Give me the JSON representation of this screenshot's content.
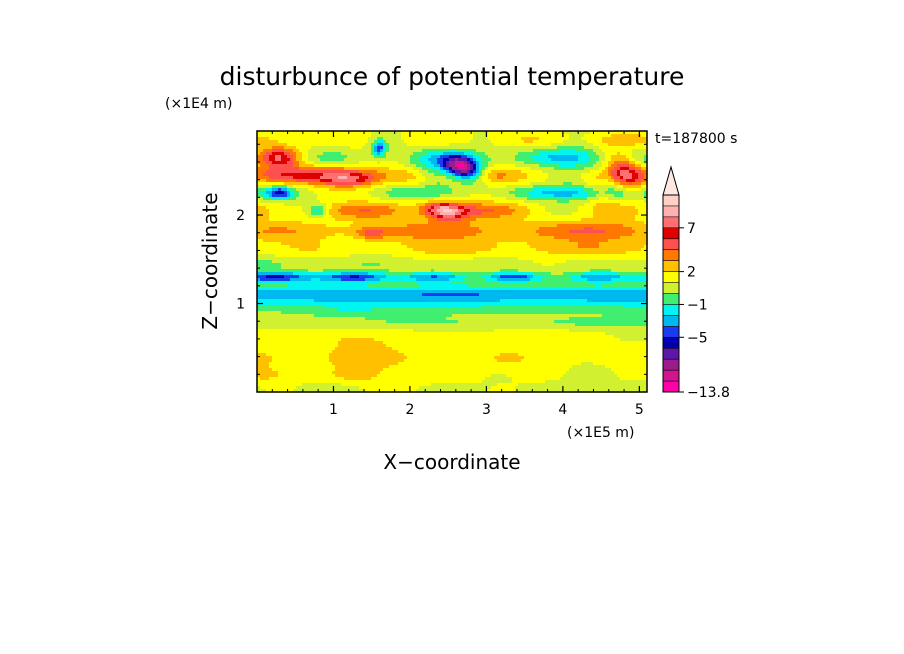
{
  "chart_data": {
    "type": "heatmap",
    "title": "disturbunce of potential temperature",
    "time_label": "t=187800 s",
    "xlabel": "X−coordinate",
    "ylabel": "Z−coordinate",
    "x_unit": "(×1E5 m)",
    "y_unit": "(×1E4 m)",
    "xlim": [
      0,
      5.1
    ],
    "ylim": [
      0,
      2.95
    ],
    "x_ticks": [
      {
        "v": 1,
        "label": "1"
      },
      {
        "v": 2,
        "label": "2"
      },
      {
        "v": 3,
        "label": "3"
      },
      {
        "v": 4,
        "label": "4"
      },
      {
        "v": 5,
        "label": "5"
      }
    ],
    "y_ticks": [
      {
        "v": 1,
        "label": "1"
      },
      {
        "v": 2,
        "label": "2"
      }
    ],
    "colorbar": {
      "extend": "max",
      "colors": [
        "#ff00aa",
        "#d0158e",
        "#9b1c8c",
        "#5c16a8",
        "#0000b0",
        "#1a3cf0",
        "#00b8f0",
        "#00f5f0",
        "#40ee70",
        "#d0f030",
        "#ffff00",
        "#ffc000",
        "#ff7800",
        "#ff5050",
        "#e00000",
        "#ff7070",
        "#ffb0b0",
        "#ffd0c8"
      ],
      "tick_labels": [
        {
          "bound": 0,
          "label": "−13.8"
        },
        {
          "bound": 5,
          "label": "−5"
        },
        {
          "bound": 8,
          "label": "−1"
        },
        {
          "bound": 11,
          "label": "2"
        },
        {
          "bound": 15,
          "label": "7"
        }
      ]
    },
    "bands": [
      {
        "z": 0.05,
        "v": -0.5,
        "dz": 0.08,
        "amp": 0.8,
        "kx": 2.5
      },
      {
        "z": 0.18,
        "v": 0.3,
        "dz": 0.1,
        "amp": 0.9,
        "kx": 3.0
      },
      {
        "z": 0.38,
        "v": 0.7,
        "dz": 0.15,
        "amp": 0.8,
        "kx": 2.0
      },
      {
        "z": 0.6,
        "v": 0.4,
        "dz": 0.12,
        "amp": 0.6,
        "kx": 1.5
      },
      {
        "z": 0.78,
        "v": -0.6,
        "dz": 0.07,
        "amp": 0.5,
        "kx": 1.5
      },
      {
        "z": 1.02,
        "v": -1.8,
        "dz": 0.16,
        "amp": 0.4,
        "kx": 1.0
      },
      {
        "z": 1.12,
        "v": -2.2,
        "dz": 0.1,
        "amp": 0.5,
        "kx": 2.0
      },
      {
        "z": 1.3,
        "v": -3.2,
        "dz": 0.06,
        "amp": 2.0,
        "kx": 3.5
      },
      {
        "z": 1.45,
        "v": -0.6,
        "dz": 0.08,
        "amp": 0.6,
        "kx": 2.5
      },
      {
        "z": 1.62,
        "v": 0.8,
        "dz": 0.1,
        "amp": 1.0,
        "kx": 2.0
      },
      {
        "z": 1.82,
        "v": 1.6,
        "dz": 0.12,
        "amp": 1.6,
        "kx": 1.8
      },
      {
        "z": 2.05,
        "v": 0.6,
        "dz": 0.1,
        "amp": 2.5,
        "kx": 2.2
      },
      {
        "z": 2.25,
        "v": -1.8,
        "dz": 0.08,
        "amp": 2.5,
        "kx": 2.0
      },
      {
        "z": 2.45,
        "v": 2.2,
        "dz": 0.1,
        "amp": 2.4,
        "kx": 1.8
      },
      {
        "z": 2.65,
        "v": -0.6,
        "dz": 0.1,
        "amp": 2.2,
        "kx": 2.5
      },
      {
        "z": 2.85,
        "v": 0.8,
        "dz": 0.08,
        "amp": 1.0,
        "kx": 3.0
      }
    ],
    "features": [
      {
        "x": 2.6,
        "z": 2.5,
        "sx": 0.35,
        "sz": 0.14,
        "v": -9.0,
        "ripple": 8.0,
        "ripple_amp": 3.0
      },
      {
        "x": 1.6,
        "z": 2.75,
        "sx": 0.1,
        "sz": 0.1,
        "v": -4.5
      },
      {
        "x": 0.3,
        "z": 2.25,
        "sx": 0.15,
        "sz": 0.07,
        "v": -4.0
      },
      {
        "x": 0.8,
        "z": 2.05,
        "sx": 0.12,
        "sz": 0.07,
        "v": -3.0
      },
      {
        "x": 2.5,
        "z": 2.05,
        "sx": 0.35,
        "sz": 0.1,
        "v": 4.5,
        "ripple": 6.0,
        "ripple_amp": 2.0
      },
      {
        "x": 0.3,
        "z": 2.65,
        "sx": 0.25,
        "sz": 0.12,
        "v": 4.0
      },
      {
        "x": 1.2,
        "z": 2.4,
        "sx": 0.35,
        "sz": 0.08,
        "v": 3.0
      },
      {
        "x": 4.7,
        "z": 2.4,
        "sx": 0.3,
        "sz": 0.25,
        "v": 2.5,
        "ripple": 7.0,
        "ripple_amp": 2.5
      },
      {
        "x": 1.5,
        "z": 1.8,
        "sx": 0.2,
        "sz": 0.07,
        "v": 2.5
      },
      {
        "x": 4.2,
        "z": 2.55,
        "sx": 0.35,
        "sz": 0.3,
        "v": -1.5
      },
      {
        "x": 3.3,
        "z": 1.3,
        "sx": 0.3,
        "sz": 0.05,
        "v": -1.5
      },
      {
        "x": 1.2,
        "z": 0.9,
        "sx": 0.5,
        "sz": 0.06,
        "v": -0.8
      }
    ]
  }
}
